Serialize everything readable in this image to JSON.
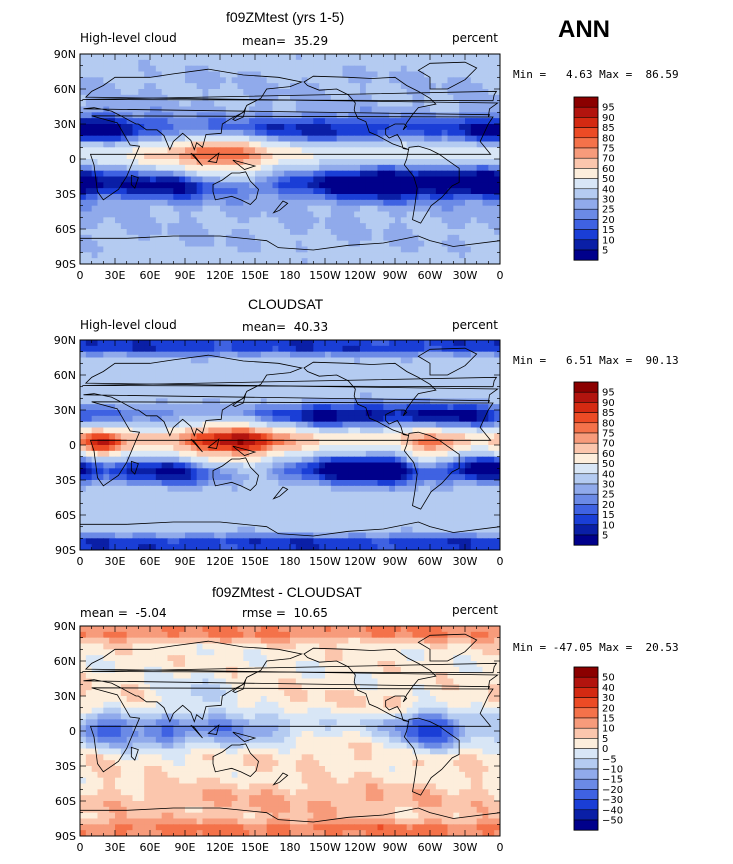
{
  "season": "ANN",
  "chart_data": [
    {
      "type": "heatmap",
      "title": "f09ZMtest (yrs 1-5)",
      "variable": "High-level cloud",
      "units": "percent",
      "mean": "35.29",
      "min_max": "Min =   4.63 Max =  86.59",
      "x_ticks": [
        "0",
        "30E",
        "60E",
        "90E",
        "120E",
        "150E",
        "180",
        "150W",
        "120W",
        "90W",
        "60W",
        "30W",
        "0"
      ],
      "y_ticks": [
        "90N",
        "60N",
        "30N",
        "0",
        "30S",
        "60S",
        "90S"
      ],
      "levels": [
        "95",
        "90",
        "85",
        "80",
        "75",
        "70",
        "60",
        "50",
        "40",
        "30",
        "25",
        "20",
        "15",
        "10",
        "5"
      ],
      "colors": [
        "#8b0000",
        "#b2140e",
        "#d42a12",
        "#ec4b25",
        "#f4724a",
        "#f79b7b",
        "#fbc6ad",
        "#fdeedc",
        "#d8e6f6",
        "#b4cbf1",
        "#90aaeb",
        "#6b8ae6",
        "#3f62e2",
        "#1a3ed6",
        "#0a1fa6",
        "#00008b"
      ],
      "field": {
        "base": 30,
        "itcz": 18,
        "subtropical_dry": -14,
        "warm_pool": [
          {
            "lat": 0,
            "lon": 125,
            "amp": 35,
            "wlat": 14,
            "wlon": 30
          },
          {
            "lat": 5,
            "lon": 75,
            "amp": 12,
            "wlat": 10,
            "wlon": 25
          }
        ],
        "dry": [
          {
            "lat": -20,
            "lon": 260,
            "amp": -27,
            "wlat": 10,
            "wlon": 40
          },
          {
            "lat": -20,
            "lon": 350,
            "amp": -22,
            "wlat": 10,
            "wlon": 25
          },
          {
            "lat": -22,
            "lon": 80,
            "amp": -15,
            "wlat": 10,
            "wlon": 30
          },
          {
            "lat": 25,
            "lon": 10,
            "amp": -18,
            "wlat": 10,
            "wlon": 30
          },
          {
            "lat": 25,
            "lon": 200,
            "amp": -10,
            "wlat": 8,
            "wlon": 40
          }
        ],
        "polar": 4
      }
    },
    {
      "type": "heatmap",
      "title": "CLOUDSAT",
      "variable": "High-level cloud",
      "units": "percent",
      "mean": "40.33",
      "min_max": "Min =   6.51 Max =  90.13",
      "x_ticks": [
        "0",
        "30E",
        "60E",
        "90E",
        "120E",
        "150E",
        "180",
        "150W",
        "120W",
        "90W",
        "60W",
        "30W",
        "0"
      ],
      "y_ticks": [
        "90N",
        "60N",
        "30N",
        "0",
        "30S",
        "60S",
        "90S"
      ],
      "levels": [
        "95",
        "90",
        "85",
        "80",
        "75",
        "70",
        "60",
        "50",
        "40",
        "30",
        "25",
        "20",
        "15",
        "10",
        "5"
      ],
      "colors": [
        "#8b0000",
        "#b2140e",
        "#d42a12",
        "#ec4b25",
        "#f4724a",
        "#f79b7b",
        "#fbc6ad",
        "#fdeedc",
        "#d8e6f6",
        "#b4cbf1",
        "#90aaeb",
        "#6b8ae6",
        "#3f62e2",
        "#1a3ed6",
        "#0a1fa6",
        "#00008b"
      ],
      "field": {
        "base": 36,
        "itcz": 22,
        "subtropical_dry": -16,
        "warm_pool": [
          {
            "lat": 0,
            "lon": 130,
            "amp": 40,
            "wlat": 15,
            "wlon": 35
          },
          {
            "lat": 0,
            "lon": 20,
            "amp": 35,
            "wlat": 10,
            "wlon": 15
          },
          {
            "lat": -5,
            "lon": 300,
            "amp": 30,
            "wlat": 12,
            "wlon": 15
          }
        ],
        "dry": [
          {
            "lat": -20,
            "lon": 250,
            "amp": -28,
            "wlat": 10,
            "wlon": 40
          },
          {
            "lat": -20,
            "lon": 350,
            "amp": -24,
            "wlat": 8,
            "wlon": 20
          },
          {
            "lat": -22,
            "lon": 80,
            "amp": -20,
            "wlat": 10,
            "wlon": 30
          },
          {
            "lat": 25,
            "lon": 220,
            "amp": -20,
            "wlat": 8,
            "wlon": 40
          },
          {
            "lat": 25,
            "lon": 320,
            "amp": -18,
            "wlat": 8,
            "wlon": 30
          }
        ],
        "polar": -26
      }
    },
    {
      "type": "heatmap",
      "title": "f09ZMtest - CLOUDSAT",
      "variable": "",
      "units": "percent",
      "mean": "-5.04",
      "rmse": "10.65",
      "min_max": "Min = -47.05 Max =  20.53",
      "x_ticks": [
        "0",
        "30E",
        "60E",
        "90E",
        "120E",
        "150E",
        "180",
        "150W",
        "120W",
        "90W",
        "60W",
        "30W",
        "0"
      ],
      "y_ticks": [
        "90N",
        "60N",
        "30N",
        "0",
        "30S",
        "60S",
        "90S"
      ],
      "levels": [
        "50",
        "40",
        "30",
        "20",
        "15",
        "10",
        "5",
        "0",
        "−5",
        "−10",
        "−15",
        "−20",
        "−30",
        "−40",
        "−50"
      ],
      "colors": [
        "#8b0000",
        "#b2140e",
        "#d42a12",
        "#ec4b25",
        "#f4724a",
        "#f79b7b",
        "#fbc6ad",
        "#fdeedc",
        "#d8e6f6",
        "#b4cbf1",
        "#90aaeb",
        "#6b8ae6",
        "#3f62e2",
        "#1a3ed6",
        "#0a1fa6",
        "#00008b"
      ],
      "field": {
        "base": 2,
        "itcz": -6,
        "subtropical_dry": 3,
        "warm_pool": [
          {
            "lat": 0,
            "lon": 300,
            "amp": -30,
            "wlat": 12,
            "wlon": 20
          },
          {
            "lat": 0,
            "lon": 20,
            "amp": -22,
            "wlat": 10,
            "wlon": 15
          },
          {
            "lat": 0,
            "lon": 130,
            "amp": -14,
            "wlat": 12,
            "wlon": 30
          },
          {
            "lat": -5,
            "lon": 65,
            "amp": -18,
            "wlat": 10,
            "wlon": 20
          }
        ],
        "dry": [
          {
            "lat": 30,
            "lon": 100,
            "amp": -10,
            "wlat": 10,
            "wlon": 25
          },
          {
            "lat": -60,
            "lon": 180,
            "amp": 8,
            "wlat": 12,
            "wlon": 180
          }
        ],
        "polar": 14
      }
    }
  ]
}
